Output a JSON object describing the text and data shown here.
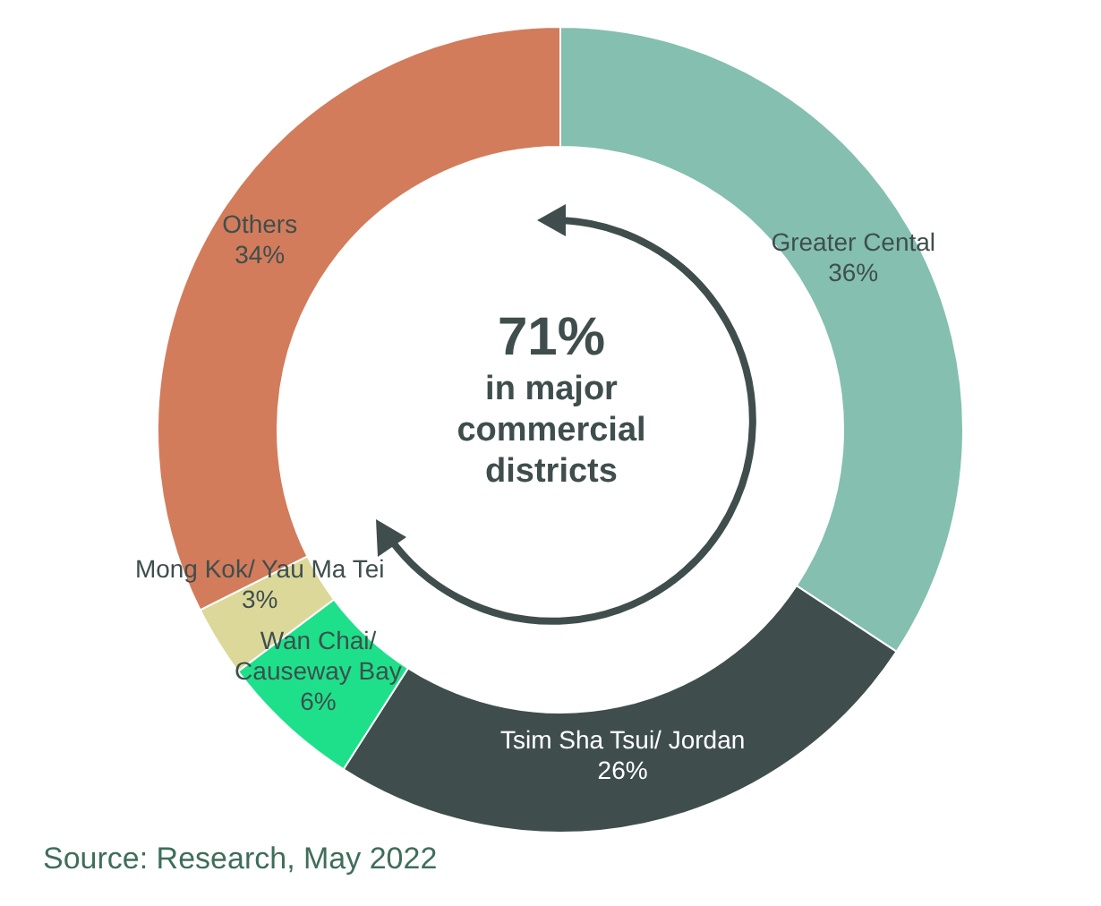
{
  "chart_data": {
    "type": "donut",
    "categories": [
      "Greater Cental",
      "Tsim Sha Tsui/ Jordan",
      "Wan Chai/ Causeway Bay",
      "Mong Kok/ Yau Ma Tei",
      "Others"
    ],
    "values": [
      36,
      26,
      6,
      3,
      34
    ],
    "colors": [
      "#84bfb0",
      "#3f4e4d",
      "#1ee08a",
      "#dcd89a",
      "#d27c5c"
    ],
    "value_labels": [
      "36%",
      "26%",
      "6%",
      "3%",
      "34%"
    ],
    "legend": false,
    "annotations": [
      "71%",
      "in major commercial districts",
      "Source: Research, May 2022"
    ]
  }
}
